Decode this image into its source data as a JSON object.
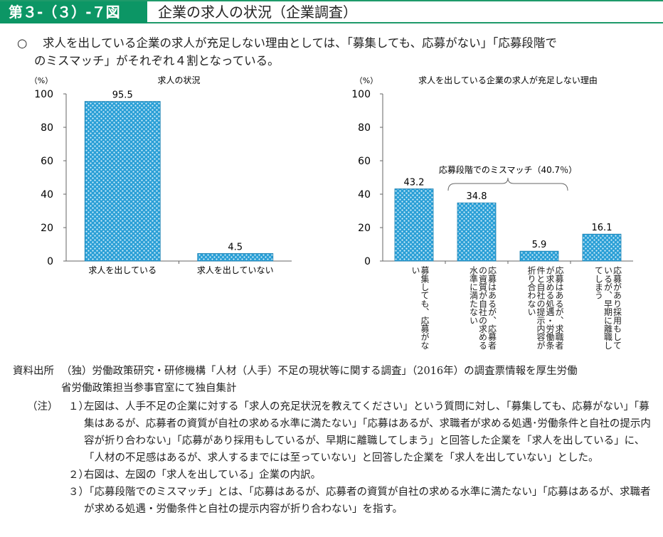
{
  "header": {
    "figure_number": "第３-（３）-７図",
    "title": "企業の求人の状況（企業調査）"
  },
  "lead": {
    "mark": "○",
    "line1": "求人を出している企業の求人が充足しない理由としては、「募集しても、応募がない」「応募段階で",
    "line2": "のミスマッチ」がそれぞれ４割となっている。"
  },
  "chart_data": [
    {
      "type": "bar",
      "title": "求人の状況",
      "ylabel": "（%）",
      "ylim": [
        0,
        100
      ],
      "yticks": [
        0,
        20,
        40,
        60,
        80,
        100
      ],
      "categories": [
        "求人を出している",
        "求人を出していない"
      ],
      "values": [
        95.5,
        4.5
      ],
      "value_labels": [
        "95.5",
        "4.5"
      ],
      "bar_color": "#2a9fd6"
    },
    {
      "type": "bar",
      "title": "求人を出している企業の求人が充足しない理由",
      "ylabel": "（%）",
      "ylim": [
        0,
        100
      ],
      "yticks": [
        0,
        20,
        40,
        60,
        80,
        100
      ],
      "categories": [
        "募集しても、応募がない",
        "応募はあるが、応募者の資質が自社の求める水準に満たない",
        "応募はあるが、求職者が求める処遇・労働条件と自社の提示内容が折り合わない",
        "応募があり採用もしているが、早期に離職してしまう"
      ],
      "values": [
        43.2,
        34.8,
        5.9,
        16.1
      ],
      "value_labels": [
        "43.2",
        "34.8",
        "5.9",
        "16.1"
      ],
      "bar_color": "#2a9fd6",
      "annotation": "応募段階でのミスマッチ（40.7％）"
    }
  ],
  "source": {
    "label": "資料出所",
    "text1": "（独）労働政策研究・研修機構「人材（人手）不足の現状等に関する調査」（2016年）の調査票情報を厚生労働",
    "text2": "省労働政策担当参事官室にて独自集計"
  },
  "notes": {
    "label": "（注）",
    "items": [
      {
        "num": "１）",
        "text": "左図は、人手不足の企業に対する「求人の充足状況を教えてください」という質問に対し、「募集しても、応募がない」「募集はあるが、応募者の資質が自社の求める水準に満たない」「応募はあるが、求職者が求める処遇･労働条件と自社の提示内容が折り合わない」「応募があり採用もしているが、早期に離職してしまう」と回答した企業を「求人を出している」に、「人材の不足感はあるが、求人するまでには至っていない」と回答した企業を「求人を出していない」とした。"
      },
      {
        "num": "２）",
        "text": "右図は、左図の「求人を出している」企業の内訳。"
      },
      {
        "num": "３）",
        "text": "「応募段階でのミスマッチ」とは、「応募はあるが、応募者の資質が自社の求める水準に満たない」「応募はあるが、求職者が求める処遇・労働条件と自社の提示内容が折り合わない」を指す。"
      }
    ]
  }
}
